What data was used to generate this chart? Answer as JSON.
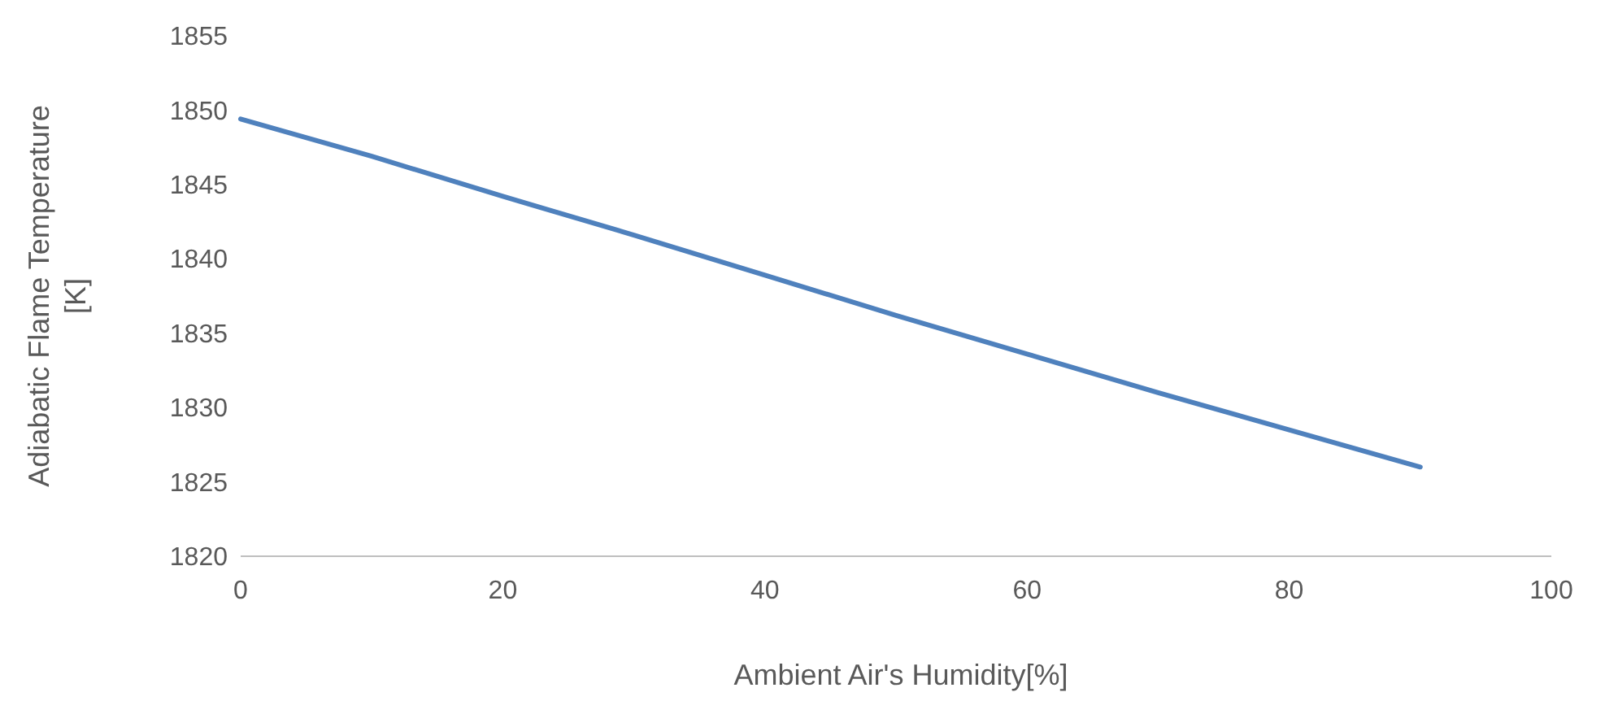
{
  "chart_data": {
    "type": "line",
    "xlabel": "Ambient Air's Humidity[%]",
    "ylabel": "Adiabatic Flame Temperature [K]",
    "x": [
      0,
      10,
      20,
      30,
      40,
      50,
      60,
      70,
      80,
      90
    ],
    "series": [
      {
        "color": "#4f81bd",
        "values": [
          1849.4,
          1846.9,
          1844.2,
          1841.6,
          1838.9,
          1836.2,
          1833.6,
          1831.0,
          1828.5,
          1826.0
        ]
      }
    ],
    "xlim": [
      0,
      100
    ],
    "xticks": [
      0,
      20,
      40,
      60,
      80,
      100
    ],
    "ylim": [
      1820,
      1855
    ],
    "yticks": [
      1820,
      1825,
      1830,
      1835,
      1840,
      1845,
      1850,
      1855
    ],
    "grid": false,
    "marker": "none",
    "line_style": "solid"
  }
}
